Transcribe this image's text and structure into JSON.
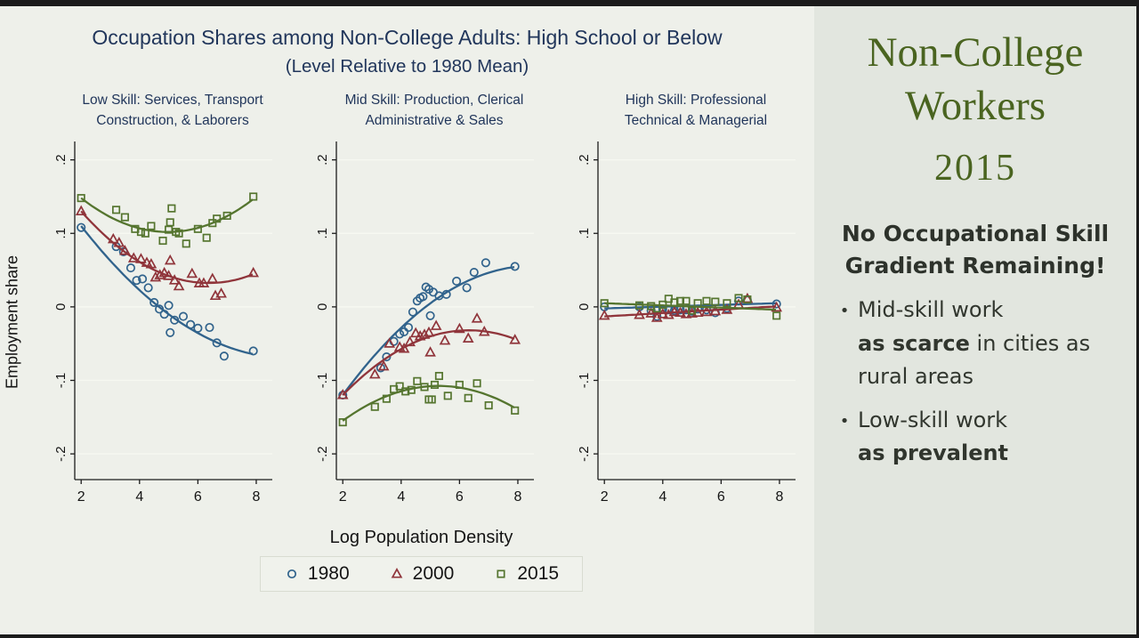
{
  "colors": {
    "title_navy": "#21365b",
    "sidebar_green": "#4a6420",
    "chart_bg": "#eef0ea",
    "sidebar_bg": "#e2e6df",
    "series_1980": "#31638c",
    "series_2000": "#90353b",
    "series_2015": "#55752f"
  },
  "sidebar": {
    "title_line1": "Non-College",
    "title_line2": "Workers",
    "year": "2015",
    "heading": "No Occupational Skill Gradient Remaining!",
    "bullets": [
      {
        "line1": "Mid-skill work",
        "bold": "as scarce",
        "rest": " in cities as rural areas"
      },
      {
        "line1": "Low-skill work",
        "bold": "as prevalent",
        "rest": ""
      }
    ]
  },
  "chart_data": {
    "type": "scatter",
    "title": "Occupation Shares among Non-College Adults: High School or Below",
    "subtitle": "(Level Relative to 1980 Mean)",
    "xlabel": "Log Population Density",
    "ylabel": "Employment share",
    "xlim": [
      1.78,
      8.55
    ],
    "ylim": [
      -0.235,
      0.225
    ],
    "grid": true,
    "legend_position": "bottom",
    "legend": [
      {
        "label": "1980",
        "marker": "circle",
        "color": "#31638c"
      },
      {
        "label": "2000",
        "marker": "triangle",
        "color": "#90353b"
      },
      {
        "label": "2015",
        "marker": "square",
        "color": "#55752f"
      }
    ],
    "xticks": [
      {
        "v": 2,
        "t": "2"
      },
      {
        "v": 4,
        "t": "4"
      },
      {
        "v": 6,
        "t": "6"
      },
      {
        "v": 8,
        "t": "8"
      }
    ],
    "yticks": [
      {
        "v": 0.2,
        "t": ".2"
      },
      {
        "v": 0.1,
        "t": ".1"
      },
      {
        "v": 0,
        "t": "0"
      },
      {
        "v": -0.1,
        "t": "-.1"
      },
      {
        "v": -0.2,
        "t": "-.2"
      }
    ],
    "panels": [
      {
        "title_lines": [
          "Low Skill: Services, Transport",
          "Construction, & Laborers"
        ],
        "series": [
          {
            "name": "1980",
            "marker": "circle",
            "color": "#31638c",
            "fit_quadratic": [
              0.2262,
              -0.0653,
              0.00361
            ],
            "points": [
              [
                2,
                0.108
              ],
              [
                3.2,
                0.082
              ],
              [
                3.45,
                0.075
              ],
              [
                3.7,
                0.053
              ],
              [
                3.9,
                0.036
              ],
              [
                4.1,
                0.038
              ],
              [
                4.3,
                0.026
              ],
              [
                4.5,
                0.006
              ],
              [
                4.68,
                -0.003
              ],
              [
                4.85,
                -0.01
              ],
              [
                5.0,
                0.002
              ],
              [
                5.05,
                -0.035
              ],
              [
                5.2,
                -0.018
              ],
              [
                5.5,
                -0.013
              ],
              [
                5.75,
                -0.024
              ],
              [
                6.0,
                -0.029
              ],
              [
                6.4,
                -0.028
              ],
              [
                6.65,
                -0.049
              ],
              [
                6.9,
                -0.067
              ],
              [
                7.9,
                -0.06
              ]
            ]
          },
          {
            "name": "2000",
            "marker": "triangle",
            "color": "#90353b",
            "fit_quadratic": [
              0.2398,
              -0.0651,
              0.00511
            ],
            "points": [
              [
                2,
                0.13
              ],
              [
                3.1,
                0.092
              ],
              [
                3.3,
                0.087
              ],
              [
                3.5,
                0.076
              ],
              [
                3.8,
                0.066
              ],
              [
                4.05,
                0.065
              ],
              [
                4.25,
                0.06
              ],
              [
                4.4,
                0.058
              ],
              [
                4.55,
                0.04
              ],
              [
                4.7,
                0.043
              ],
              [
                4.85,
                0.046
              ],
              [
                5.0,
                0.042
              ],
              [
                5.05,
                0.063
              ],
              [
                5.2,
                0.036
              ],
              [
                5.35,
                0.028
              ],
              [
                5.8,
                0.045
              ],
              [
                6.05,
                0.032
              ],
              [
                6.2,
                0.032
              ],
              [
                6.5,
                0.038
              ],
              [
                6.6,
                0.015
              ],
              [
                6.8,
                0.018
              ],
              [
                7.9,
                0.046
              ]
            ]
          },
          {
            "name": "2015",
            "marker": "square",
            "color": "#55752f",
            "fit_quadratic": [
              0.2309,
              -0.0519,
              0.00522
            ],
            "points": [
              [
                2,
                0.148
              ],
              [
                3.2,
                0.132
              ],
              [
                3.5,
                0.122
              ],
              [
                3.85,
                0.106
              ],
              [
                4.05,
                0.102
              ],
              [
                4.2,
                0.1
              ],
              [
                4.4,
                0.11
              ],
              [
                4.8,
                0.09
              ],
              [
                5.0,
                0.105
              ],
              [
                5.05,
                0.115
              ],
              [
                5.1,
                0.134
              ],
              [
                5.25,
                0.102
              ],
              [
                5.35,
                0.1
              ],
              [
                5.6,
                0.086
              ],
              [
                6.0,
                0.106
              ],
              [
                6.3,
                0.094
              ],
              [
                6.5,
                0.114
              ],
              [
                6.65,
                0.12
              ],
              [
                7.0,
                0.124
              ],
              [
                7.9,
                0.15
              ]
            ]
          }
        ]
      },
      {
        "title_lines": [
          "Mid Skill: Production, Clerical",
          "Administrative & Sales"
        ],
        "series": [
          {
            "name": "1980",
            "marker": "circle",
            "color": "#31638c",
            "fit_quadratic": [
              -0.245,
              0.0708,
              -0.004167
            ],
            "points": [
              [
                2,
                -0.12
              ],
              [
                3.3,
                -0.083
              ],
              [
                3.5,
                -0.068
              ],
              [
                3.75,
                -0.047
              ],
              [
                3.95,
                -0.037
              ],
              [
                4.1,
                -0.034
              ],
              [
                4.25,
                -0.028
              ],
              [
                4.4,
                -0.007
              ],
              [
                4.55,
                0.008
              ],
              [
                4.65,
                0.012
              ],
              [
                4.75,
                0.014
              ],
              [
                4.85,
                0.027
              ],
              [
                4.95,
                0.024
              ],
              [
                5.0,
                -0.012
              ],
              [
                5.1,
                0.02
              ],
              [
                5.3,
                0.015
              ],
              [
                5.55,
                0.017
              ],
              [
                5.9,
                0.035
              ],
              [
                6.25,
                0.026
              ],
              [
                6.5,
                0.047
              ],
              [
                6.9,
                0.06
              ],
              [
                7.9,
                0.055
              ]
            ]
          },
          {
            "name": "2000",
            "marker": "triangle",
            "color": "#90353b",
            "fit_quadratic": [
              -0.2206,
              0.0597,
              -0.004722
            ],
            "points": [
              [
                2,
                -0.12
              ],
              [
                3.1,
                -0.092
              ],
              [
                3.4,
                -0.081
              ],
              [
                3.6,
                -0.05
              ],
              [
                3.95,
                -0.055
              ],
              [
                4.1,
                -0.057
              ],
              [
                4.3,
                -0.048
              ],
              [
                4.5,
                -0.036
              ],
              [
                4.65,
                -0.04
              ],
              [
                4.8,
                -0.038
              ],
              [
                4.95,
                -0.035
              ],
              [
                5.0,
                -0.062
              ],
              [
                5.2,
                -0.026
              ],
              [
                5.5,
                -0.046
              ],
              [
                6.0,
                -0.03
              ],
              [
                6.3,
                -0.043
              ],
              [
                6.6,
                -0.016
              ],
              [
                6.85,
                -0.034
              ],
              [
                7.9,
                -0.045
              ]
            ]
          },
          {
            "name": "2015",
            "marker": "square",
            "color": "#55752f",
            "fit_quadratic": [
              -0.2302,
              0.0464,
              -0.004389
            ],
            "points": [
              [
                2,
                -0.157
              ],
              [
                3.1,
                -0.136
              ],
              [
                3.5,
                -0.125
              ],
              [
                3.75,
                -0.112
              ],
              [
                3.95,
                -0.108
              ],
              [
                4.15,
                -0.115
              ],
              [
                4.35,
                -0.113
              ],
              [
                4.55,
                -0.101
              ],
              [
                4.8,
                -0.109
              ],
              [
                4.95,
                -0.126
              ],
              [
                5.05,
                -0.126
              ],
              [
                5.15,
                -0.106
              ],
              [
                5.3,
                -0.094
              ],
              [
                5.6,
                -0.121
              ],
              [
                6.0,
                -0.106
              ],
              [
                6.3,
                -0.124
              ],
              [
                6.6,
                -0.104
              ],
              [
                7.0,
                -0.134
              ],
              [
                7.9,
                -0.141
              ]
            ]
          }
        ]
      },
      {
        "title_lines": [
          "High Skill: Professional",
          "Technical & Managerial"
        ],
        "series": [
          {
            "name": "1980",
            "marker": "circle",
            "color": "#31638c",
            "fit_quadratic": [
              -0.0045,
              0.0012,
              0
            ],
            "points": [
              [
                2,
                0.0
              ],
              [
                3.2,
                0.0
              ],
              [
                3.6,
                -0.005
              ],
              [
                3.8,
                -0.013
              ],
              [
                4.0,
                -0.003
              ],
              [
                4.2,
                -0.004
              ],
              [
                4.4,
                -0.005
              ],
              [
                4.6,
                -0.004
              ],
              [
                4.8,
                -0.004
              ],
              [
                5.0,
                -0.006
              ],
              [
                5.2,
                -0.003
              ],
              [
                5.5,
                -0.004
              ],
              [
                5.8,
                -0.008
              ],
              [
                6.2,
                -0.002
              ],
              [
                6.6,
                0.008
              ],
              [
                6.9,
                0.009
              ],
              [
                7.9,
                0.004
              ]
            ]
          },
          {
            "name": "2000",
            "marker": "triangle",
            "color": "#90353b",
            "fit_quadratic": [
              -0.0177,
              0.00233,
              0
            ],
            "points": [
              [
                2,
                -0.012
              ],
              [
                3.2,
                -0.011
              ],
              [
                3.6,
                -0.009
              ],
              [
                3.8,
                -0.015
              ],
              [
                4.0,
                -0.01
              ],
              [
                4.2,
                -0.011
              ],
              [
                4.4,
                -0.007
              ],
              [
                4.6,
                -0.008
              ],
              [
                4.8,
                -0.01
              ],
              [
                5.0,
                -0.009
              ],
              [
                5.2,
                -0.008
              ],
              [
                5.5,
                -0.007
              ],
              [
                5.8,
                -0.006
              ],
              [
                6.2,
                -0.004
              ],
              [
                6.6,
                0.003
              ],
              [
                6.9,
                0.011
              ],
              [
                7.9,
                -0.001
              ]
            ]
          },
          {
            "name": "2015",
            "marker": "square",
            "color": "#55752f",
            "fit_quadratic": [
              0.008,
              -0.0015,
              0
            ],
            "points": [
              [
                2,
                0.005
              ],
              [
                3.2,
                0.002
              ],
              [
                3.6,
                0.001
              ],
              [
                3.8,
                -0.002
              ],
              [
                4.0,
                0.003
              ],
              [
                4.2,
                0.011
              ],
              [
                4.4,
                0.006
              ],
              [
                4.6,
                0.008
              ],
              [
                4.8,
                0.008
              ],
              [
                5.0,
                -0.005
              ],
              [
                5.2,
                0.005
              ],
              [
                5.5,
                0.008
              ],
              [
                5.8,
                0.007
              ],
              [
                6.2,
                0.005
              ],
              [
                6.6,
                0.012
              ],
              [
                6.9,
                0.01
              ],
              [
                7.9,
                -0.012
              ]
            ]
          }
        ]
      }
    ]
  }
}
